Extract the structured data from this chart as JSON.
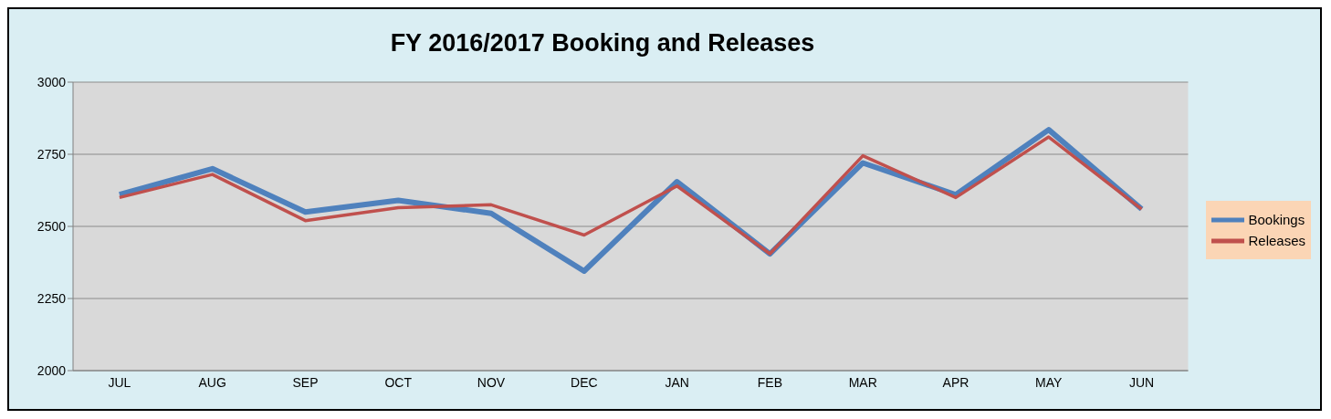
{
  "chart_data": {
    "type": "line",
    "title": "FY 2016/2017 Booking and Releases",
    "categories": [
      "JUL",
      "AUG",
      "SEP",
      "OCT",
      "NOV",
      "DEC",
      "JAN",
      "FEB",
      "MAR",
      "APR",
      "MAY",
      "JUN"
    ],
    "series": [
      {
        "name": "Bookings",
        "color": "#4f81bd",
        "values": [
          2610,
          2700,
          2550,
          2590,
          2545,
          2345,
          2655,
          2405,
          2720,
          2610,
          2835,
          2560
        ]
      },
      {
        "name": "Releases",
        "color": "#c0504d",
        "values": [
          2600,
          2680,
          2520,
          2565,
          2575,
          2470,
          2640,
          2405,
          2745,
          2600,
          2810,
          2560
        ]
      }
    ],
    "ylim": [
      2000,
      3000
    ],
    "yticks": [
      2000,
      2250,
      2500,
      2750,
      3000
    ],
    "grid": "y",
    "legend": "right",
    "marker": "none",
    "line_style": "solid"
  }
}
